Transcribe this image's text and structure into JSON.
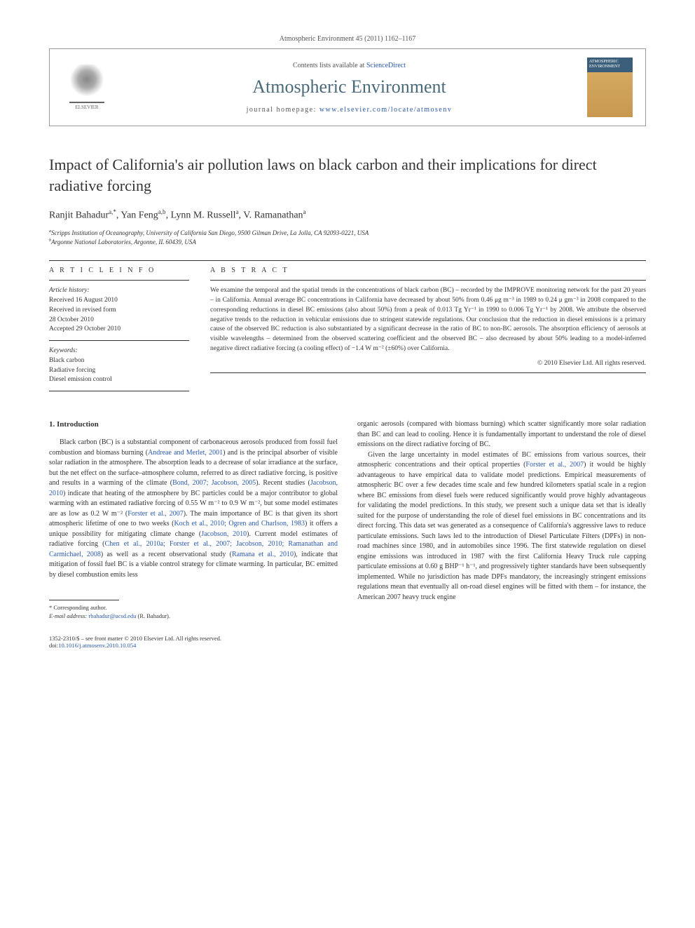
{
  "journal_ref": "Atmospheric Environment 45 (2011) 1162–1167",
  "header": {
    "contents_text": "Contents lists available at ",
    "contents_link": "ScienceDirect",
    "journal_name": "Atmospheric Environment",
    "homepage_label": "journal homepage: ",
    "homepage_url": "www.elsevier.com/locate/atmosenv",
    "publisher": "ELSEVIER",
    "cover_title": "ATMOSPHERIC ENVIRONMENT"
  },
  "title": "Impact of California's air pollution laws on black carbon and their implications for direct radiative forcing",
  "authors_html": "Ranjit Bahadur<sup>a,*</sup>, Yan Feng<sup>a,b</sup>, Lynn M. Russell<sup>a</sup>, V. Ramanathan<sup>a</sup>",
  "affiliations": {
    "a": "Scripps Institution of Oceanography, University of California San Diego, 9500 Gilman Drive, La Jolla, CA 92093-0221, USA",
    "b": "Argonne National Laboratories, Argonne, IL 60439, USA"
  },
  "info": {
    "heading": "A R T I C L E   I N F O",
    "history_label": "Article history:",
    "received": "Received 16 August 2010",
    "revised": "Received in revised form",
    "revised_date": "28 October 2010",
    "accepted": "Accepted 29 October 2010",
    "keywords_label": "Keywords:",
    "keywords": [
      "Black carbon",
      "Radiative forcing",
      "Diesel emission control"
    ]
  },
  "abstract": {
    "heading": "A B S T R A C T",
    "text": "We examine the temporal and the spatial trends in the concentrations of black carbon (BC) – recorded by the IMPROVE monitoring network for the past 20 years – in California. Annual average BC concentrations in California have decreased by about 50% from 0.46 μg m⁻³ in 1989 to 0.24 μ gm⁻³ in 2008 compared to the corresponding reductions in diesel BC emissions (also about 50%) from a peak of 0.013 Tg Yr⁻¹ in 1990 to 0.006 Tg Yr⁻¹ by 2008. We attribute the observed negative trends to the reduction in vehicular emissions due to stringent statewide regulations. Our conclusion that the reduction in diesel emissions is a primary cause of the observed BC reduction is also substantiated by a significant decrease in the ratio of BC to non-BC aerosols. The absorption efficiency of aerosols at visible wavelengths – determined from the observed scattering coefficient and the observed BC – also decreased by about 50% leading to a model-inferred negative direct radiative forcing (a cooling effect) of −1.4 W m⁻² (±60%) over California.",
    "copyright": "© 2010 Elsevier Ltd. All rights reserved."
  },
  "body": {
    "section1_heading": "1. Introduction",
    "col1_p1_parts": [
      "Black carbon (BC) is a substantial component of carbonaceous aerosols produced from fossil fuel combustion and biomass burning (",
      "Andreae and Merlet, 2001",
      ") and is the principal absorber of visible solar radiation in the atmosphere. The absorption leads to a decrease of solar irradiance at the surface, but the net effect on the surface–atmosphere column, referred to as direct radiative forcing, is positive and results in a warming of the climate (",
      "Bond, 2007; Jacobson, 2005",
      "). Recent studies (",
      "Jacobson, 2010",
      ") indicate that heating of the atmosphere by BC particles could be a major contributor to global warming with an estimated radiative forcing of 0.55 W m⁻² to 0.9 W m⁻², but some model estimates are as low as 0.2 W m⁻² (",
      "Forster et al., 2007",
      "). The main importance of BC is that given its short atmospheric lifetime of one to two weeks (",
      "Koch et al., 2010; Ogren and Charlson, 1983",
      ") it offers a unique possibility for mitigating climate change (",
      "Jacobson, 2010",
      "). Current model estimates of radiative forcing (",
      "Chen et al., 2010a; Forster et al., 2007; Jacobson, 2010; Ramanathan and Carmichael, 2008",
      ") as well as a recent observational study (",
      "Ramana et al., 2010",
      "), indicate that mitigation of fossil fuel BC is a viable control strategy for climate warming. In particular, BC emitted by diesel combustion emits less"
    ],
    "col2_p1": "organic aerosols (compared with biomass burning) which scatter significantly more solar radiation than BC and can lead to cooling. Hence it is fundamentally important to understand the role of diesel emissions on the direct radiative forcing of BC.",
    "col2_p2_parts": [
      "Given the large uncertainty in model estimates of BC emissions from various sources, their atmospheric concentrations and their optical properties (",
      "Forster et al., 2007",
      ") it would be highly advantageous to have empirical data to validate model predictions. Empirical measurements of atmospheric BC over a few decades time scale and few hundred kilometers spatial scale in a region where BC emissions from diesel fuels were reduced significantly would prove highly advantageous for validating the model predictions. In this study, we present such a unique data set that is ideally suited for the purpose of understanding the role of diesel fuel emissions in BC concentrations and its direct forcing. This data set was generated as a consequence of California's aggressive laws to reduce particulate emissions. Such laws led to the introduction of Diesel Particulate Filters (DPFs) in non-road machines since 1980, and in automobiles since 1996. The first statewide regulation on diesel engine emissions was introduced in 1987 with the first California Heavy Truck rule capping particulate emissions at 0.60 g BHP⁻¹ h⁻¹, and progressively tighter standards have been subsequently implemented. While no jurisdiction has made DPFs mandatory, the increasingly stringent emissions regulations mean that eventually all on-road diesel engines will be fitted with them – for instance, the American 2007 heavy truck engine"
    ]
  },
  "footnotes": {
    "corr_label": "* Corresponding author.",
    "email_label": "E-mail address:",
    "email": "rbahadur@ucsd.edu",
    "email_tail": "(R. Bahadur)."
  },
  "footer": {
    "left_line1": "1352-2310/$ – see front matter © 2010 Elsevier Ltd. All rights reserved.",
    "left_line2_label": "doi:",
    "left_line2_link": "10.1016/j.atmosenv.2010.10.054"
  },
  "colors": {
    "link": "#2858a8",
    "journal_name": "#4a6a7a",
    "text": "#333333",
    "rule": "#333333"
  }
}
